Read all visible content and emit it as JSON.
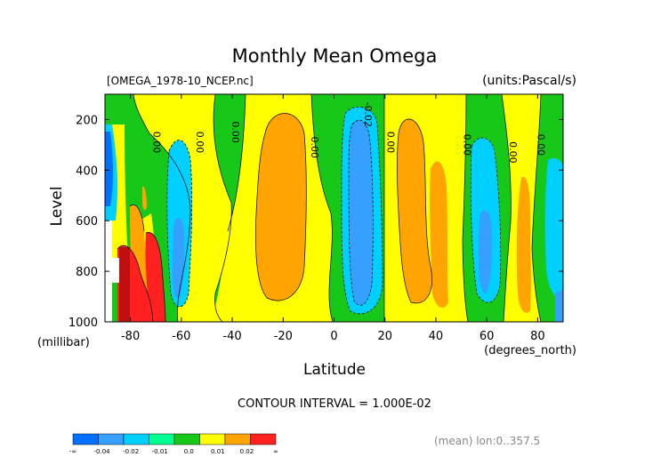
{
  "chart_data": {
    "type": "heatmap",
    "title": "Monthly Mean Omega",
    "file_label": "[OMEGA_1978-10_NCEP.nc]",
    "units_label": "(units:Pascal/s)",
    "xlabel": "Latitude",
    "x_units": "(degrees_north)",
    "ylabel": "Level",
    "y_units": "(millibar)",
    "x_ticks": [
      "-80",
      "-60",
      "-40",
      "-20",
      "0",
      "20",
      "40",
      "60",
      "80"
    ],
    "x_tick_values": [
      -80,
      -60,
      -40,
      -20,
      0,
      20,
      40,
      60,
      80
    ],
    "y_ticks": [
      "200",
      "400",
      "600",
      "800",
      "1000"
    ],
    "y_tick_values": [
      200,
      400,
      600,
      800,
      1000
    ],
    "xlim": [
      -90,
      90
    ],
    "ylim": [
      1000,
      100
    ],
    "contour_interval_text": "CONTOUR INTERVAL = 1.000E-02",
    "mean_note": "(mean) lon:0..357.5",
    "contour_labels": [
      {
        "text": "0.00",
        "lat": -71,
        "lev": 290
      },
      {
        "text": "0.00",
        "lat": -54,
        "lev": 290
      },
      {
        "text": "0.00",
        "lat": -40,
        "lev": 250
      },
      {
        "text": "0.00",
        "lat": -9,
        "lev": 310
      },
      {
        "text": "-0.02",
        "lat": 12,
        "lev": 180
      },
      {
        "text": "0.00",
        "lat": 21,
        "lev": 290
      },
      {
        "text": "0.00",
        "lat": 51,
        "lev": 300
      },
      {
        "text": "0.00",
        "lat": 69,
        "lev": 330
      },
      {
        "text": "0.00",
        "lat": 80,
        "lev": 300
      }
    ],
    "legend": {
      "labels": [
        "-∞",
        "-0.04",
        "-0.02",
        "-0.01",
        "0.0",
        "0.01",
        "0.02",
        "∞"
      ],
      "colors": [
        "#0070ff",
        "#36a0ff",
        "#00d0ff",
        "#00ff90",
        "#18c818",
        "#ffff00",
        "#ffa400",
        "#ff2020"
      ]
    },
    "field": {
      "note": "Approximate omega (Pa/s) regions read from the filled contours",
      "regions": [
        {
          "sign": "negative",
          "lat_range": [
            -90,
            -86
          ],
          "lev_range": [
            250,
            600
          ],
          "value": -0.02
        },
        {
          "sign": "negative",
          "lat_range": [
            -65,
            -58
          ],
          "lev_range": [
            300,
            950
          ],
          "value": -0.02
        },
        {
          "sign": "negative",
          "lat_range": [
            5,
            15
          ],
          "lev_range": [
            130,
            950
          ],
          "value": -0.03
        },
        {
          "sign": "negative",
          "lat_range": [
            54,
            64
          ],
          "lev_range": [
            270,
            940
          ],
          "value": -0.02
        },
        {
          "sign": "negative",
          "lat_range": [
            85,
            90
          ],
          "lev_range": [
            300,
            1000
          ],
          "value": -0.02
        },
        {
          "sign": "positive",
          "lat_range": [
            -86,
            -72
          ],
          "lev_range": [
            650,
            1000
          ],
          "value": 0.03
        },
        {
          "sign": "positive",
          "lat_range": [
            -32,
            -10
          ],
          "lev_range": [
            150,
            900
          ],
          "value": 0.015
        },
        {
          "sign": "positive",
          "lat_range": [
            26,
            46
          ],
          "lev_range": [
            170,
            930
          ],
          "value": 0.015
        },
        {
          "sign": "positive",
          "lat_range": [
            70,
            75
          ],
          "lev_range": [
            480,
            980
          ],
          "value": 0.012
        }
      ]
    }
  }
}
